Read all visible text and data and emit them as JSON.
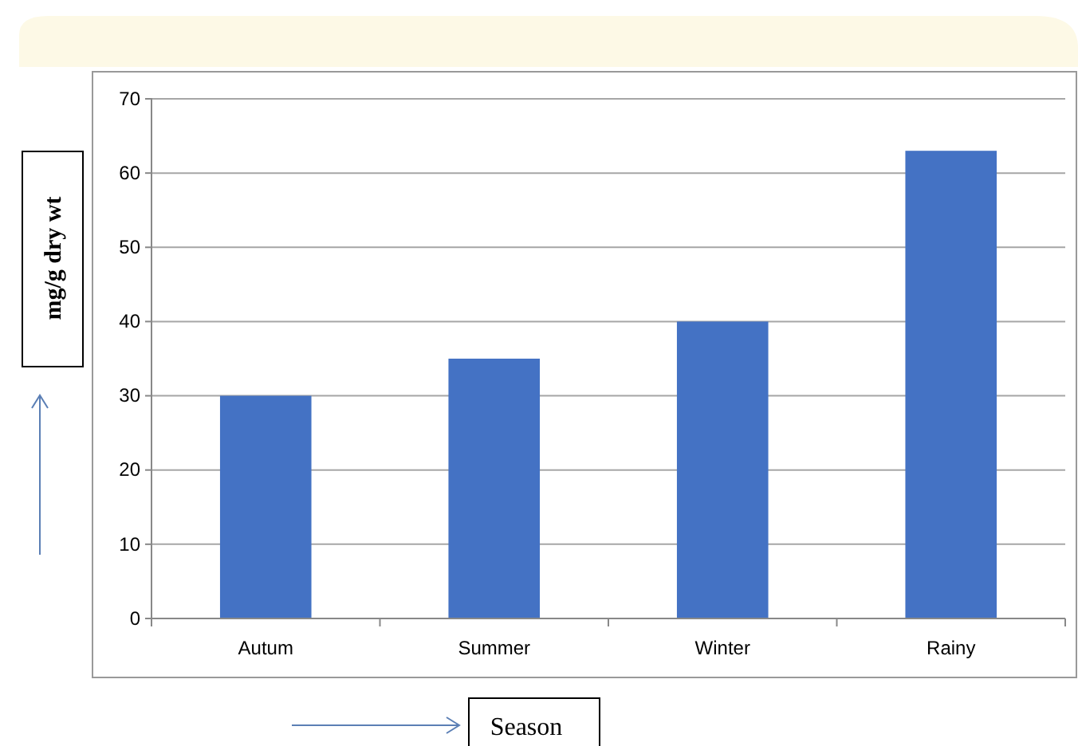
{
  "chart_data": {
    "type": "bar",
    "categories": [
      "Autum",
      "Summer",
      "Winter",
      "Rainy"
    ],
    "values": [
      30,
      35,
      40,
      63
    ],
    "color": "#4472c4",
    "ylim": [
      0,
      70
    ],
    "yticks": [
      0,
      10,
      20,
      30,
      40,
      50,
      60,
      70
    ],
    "grid": "y",
    "xlabel": "Season",
    "ylabel": "mg/g dry wt"
  }
}
